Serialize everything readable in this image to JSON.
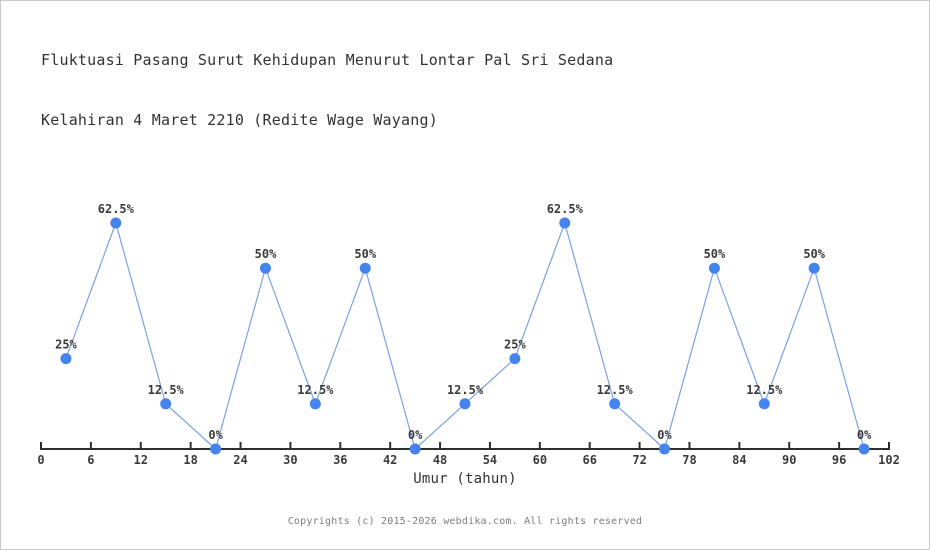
{
  "title": {
    "line1": "Fluktuasi Pasang Surut Kehidupan Menurut Lontar Pal Sri Sedana",
    "line2": "Kelahiran 4 Maret 2210 (Redite Wage Wayang)"
  },
  "chart_data": {
    "type": "line",
    "title": "Fluktuasi Pasang Surut Kehidupan Menurut Lontar Pal Sri Sedana Kelahiran 4 Maret 2210 (Redite Wage Wayang)",
    "xlabel": "Umur (tahun)",
    "ylabel": "",
    "x": [
      3,
      9,
      15,
      21,
      27,
      33,
      39,
      45,
      51,
      57,
      63,
      69,
      75,
      81,
      87,
      93,
      99
    ],
    "values": [
      25,
      62.5,
      12.5,
      0,
      50,
      12.5,
      50,
      0,
      12.5,
      25,
      62.5,
      12.5,
      0,
      50,
      12.5,
      50,
      0
    ],
    "point_labels": [
      "25%",
      "62.5%",
      "12.5%",
      "0%",
      "50%",
      "12.5%",
      "50%",
      "0%",
      "12.5%",
      "25%",
      "62.5%",
      "12.5%",
      "0%",
      "50%",
      "12.5%",
      "50%",
      "0%"
    ],
    "x_ticks": [
      0,
      6,
      12,
      18,
      24,
      30,
      36,
      42,
      48,
      54,
      60,
      66,
      72,
      78,
      84,
      90,
      96,
      102
    ],
    "xlim": [
      0,
      102
    ],
    "ylim": [
      0,
      77
    ],
    "grid": false,
    "legend": "none",
    "colors": {
      "line": "#7ba2e2",
      "marker": "#4583ef",
      "axis": "#2e2e2e",
      "label": "#3a3a3a"
    }
  },
  "footer": {
    "text": "Copyrights (c) 2015-2026 webdika.com. All rights reserved"
  }
}
